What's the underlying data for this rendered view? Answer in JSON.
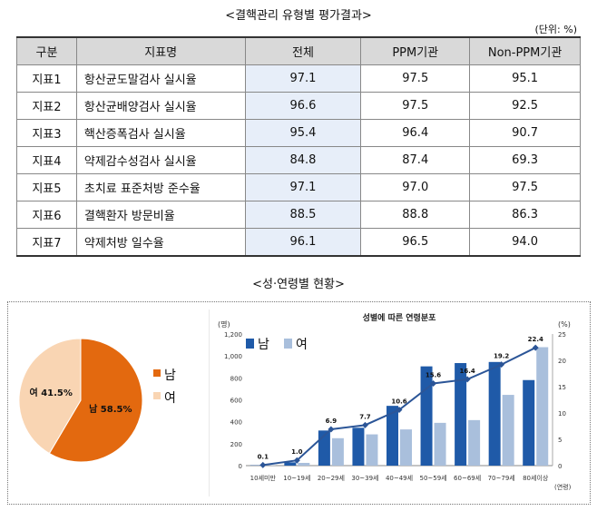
{
  "table": {
    "title": "<결핵관리 유형별 평가결과>",
    "unit": "(단위: %)",
    "headers": [
      "구분",
      "지표명",
      "전체",
      "PPM기관",
      "Non-PPM기관"
    ],
    "rows": [
      {
        "id": "지표1",
        "name": "항산균도말검사 실시율",
        "total": "97.1",
        "ppm": "97.5",
        "nonppm": "95.1"
      },
      {
        "id": "지표2",
        "name": "항산균배양검사 실시율",
        "total": "96.6",
        "ppm": "97.5",
        "nonppm": "92.5"
      },
      {
        "id": "지표3",
        "name": "핵산증폭검사 실시율",
        "total": "95.4",
        "ppm": "96.4",
        "nonppm": "90.7"
      },
      {
        "id": "지표4",
        "name": "약제감수성검사 실시율",
        "total": "84.8",
        "ppm": "87.4",
        "nonppm": "69.3"
      },
      {
        "id": "지표5",
        "name": "초치료 표준처방 준수율",
        "total": "97.1",
        "ppm": "97.0",
        "nonppm": "97.5"
      },
      {
        "id": "지표6",
        "name": "결핵환자 방문비율",
        "total": "88.5",
        "ppm": "88.8",
        "nonppm": "86.3"
      },
      {
        "id": "지표7",
        "name": "약제처방 일수율",
        "total": "96.1",
        "ppm": "96.5",
        "nonppm": "94.0"
      }
    ]
  },
  "section_title": "<성·연령별 현황>",
  "colors": {
    "male": "#1f5aa8",
    "female": "#a9bfdc",
    "pie_male": "#e3690f",
    "pie_female": "#f9d5b3",
    "line": "#2b5597"
  },
  "chart_data": [
    {
      "type": "pie",
      "labels": [
        "남",
        "여"
      ],
      "values": [
        58.5,
        41.5
      ],
      "slice_labels": [
        "남 58.5%",
        "여 41.5%"
      ],
      "legend": [
        "남",
        "여"
      ],
      "legend_position": "right"
    },
    {
      "type": "bar",
      "title": "성별에 따른 연령분포",
      "categories": [
        "10세미만",
        "10~19세",
        "20~29세",
        "30~39세",
        "40~49세",
        "50~59세",
        "60~69세",
        "70~79세",
        "80세이상"
      ],
      "series": [
        {
          "name": "남",
          "values": [
            3,
            30,
            320,
            345,
            545,
            905,
            935,
            945,
            780
          ]
        },
        {
          "name": "여",
          "values": [
            3,
            25,
            250,
            285,
            330,
            390,
            415,
            645,
            1080
          ]
        }
      ],
      "line_series": {
        "values": [
          0.1,
          1.0,
          6.9,
          7.7,
          10.6,
          15.6,
          16.4,
          19.2,
          22.4
        ],
        "labels": [
          "0.1",
          "1.0",
          "6.9",
          "7.7",
          "10.6",
          "15.6",
          "16.4",
          "19.2",
          "22.4"
        ]
      },
      "ylabel": "(명)",
      "y2label": "(%)",
      "xlabel": "(연령)",
      "ylim": [
        0,
        1200
      ],
      "y2lim": [
        0,
        25
      ],
      "yticks": [
        "0",
        "200",
        "400",
        "600",
        "800",
        "1,000",
        "1,200"
      ],
      "y2ticks": [
        "0",
        "5",
        "10",
        "15",
        "20",
        "25"
      ],
      "legend_position": "top-left"
    }
  ]
}
